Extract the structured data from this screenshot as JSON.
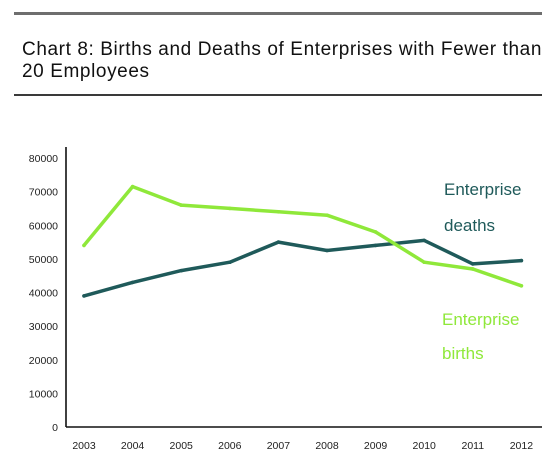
{
  "header": {
    "title": "Chart 8: Births and Deaths of Enterprises with Fewer than 20 Employees"
  },
  "chart_data": {
    "type": "line",
    "title": "Chart 8: Births and Deaths of Enterprises with Fewer than 20 Employees",
    "xlabel": "",
    "ylabel": "",
    "x": [
      "2003",
      "2004",
      "2005",
      "2006",
      "2007",
      "2008",
      "2009",
      "2010",
      "2011",
      "2012"
    ],
    "ylim": [
      0,
      80000
    ],
    "yticks": [
      0,
      10000,
      20000,
      30000,
      40000,
      50000,
      60000,
      70000,
      80000
    ],
    "grid": false,
    "series": [
      {
        "name": "Enterprise deaths",
        "label_lines": [
          "Enterprise",
          "deaths"
        ],
        "color": "#1f5a5a",
        "values": [
          39000,
          43000,
          46500,
          49000,
          55000,
          52500,
          54000,
          55500,
          48500,
          49500
        ]
      },
      {
        "name": "Enterprise births",
        "label_lines": [
          "Enterprise",
          "births"
        ],
        "color": "#8fe83a",
        "values": [
          54000,
          71500,
          66000,
          65000,
          64000,
          63000,
          58000,
          49000,
          47000,
          42000
        ]
      }
    ]
  }
}
